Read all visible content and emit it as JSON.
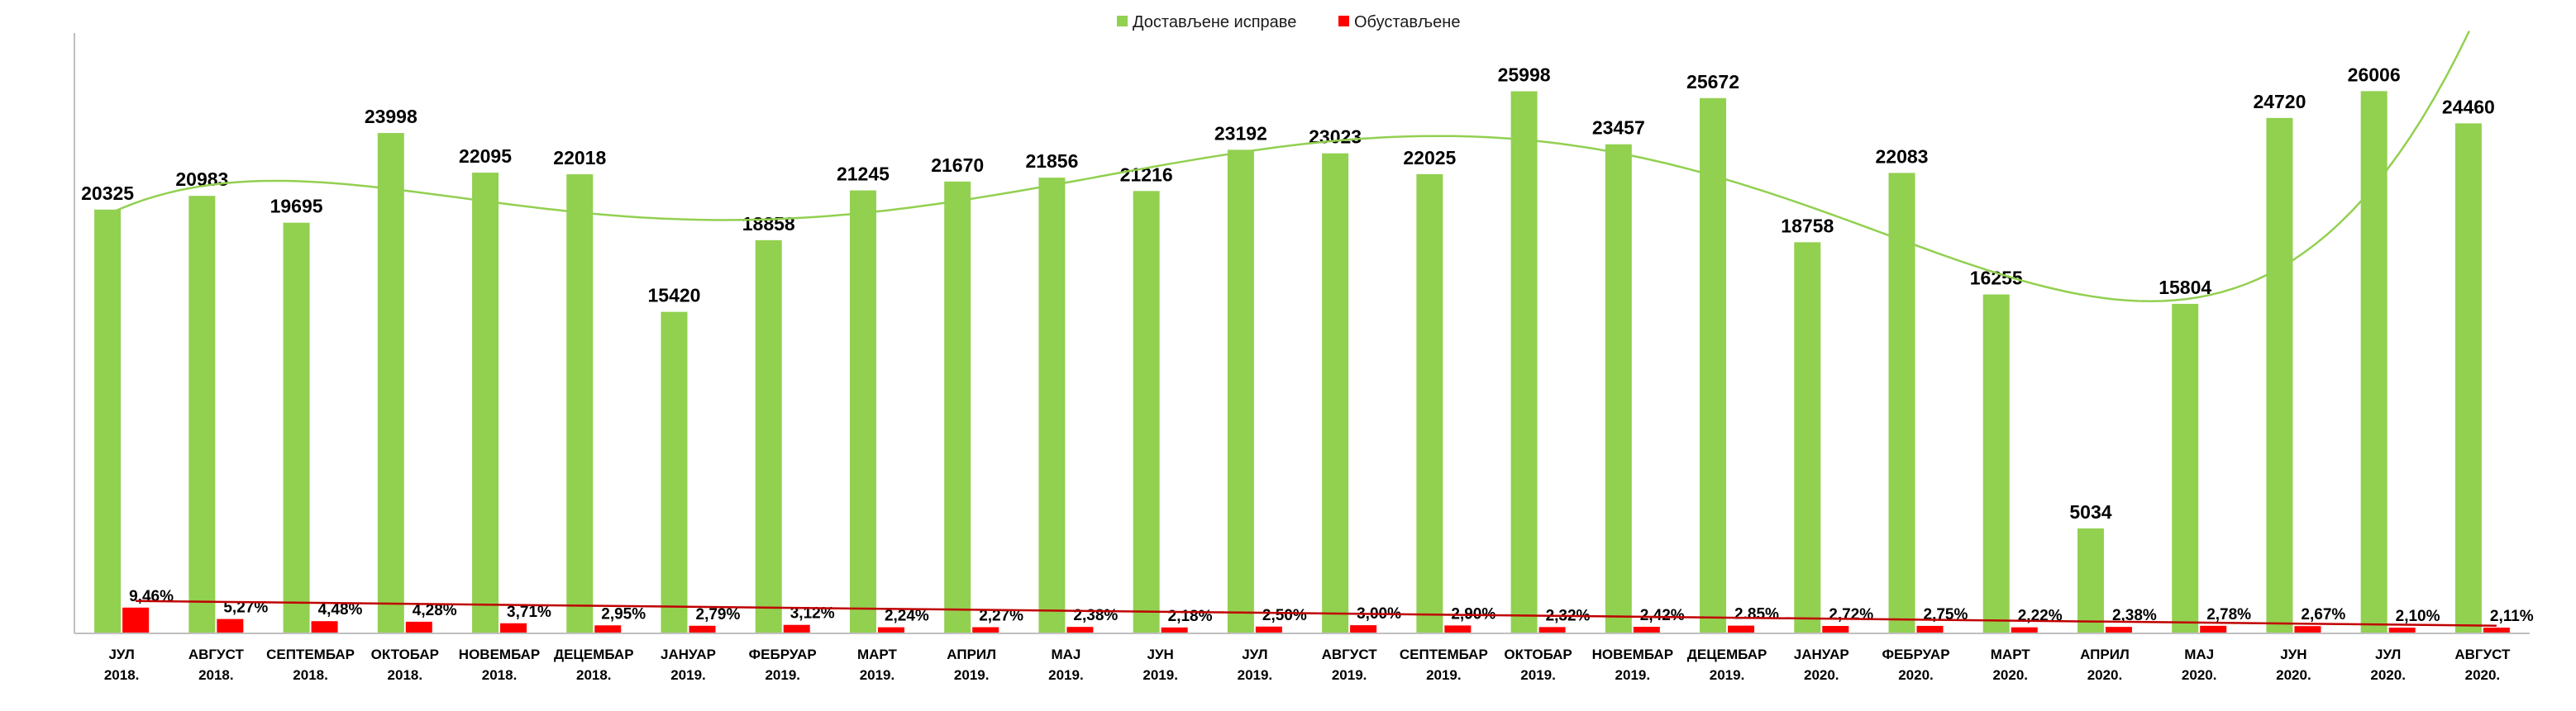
{
  "colors": {
    "submitted": "#92d050",
    "suspended": "#ff0000",
    "trend_submitted": "#92d050",
    "trend_suspended": "#c00000",
    "axis": "#bfbfbf"
  },
  "legend": {
    "submitted": "Достављене исправе",
    "suspended": "Обустављене"
  },
  "chart_data": {
    "type": "bar",
    "categories": [
      [
        "ЈУЛ",
        "2018."
      ],
      [
        "АВГУСТ",
        "2018."
      ],
      [
        "СЕПТЕМБАР",
        "2018."
      ],
      [
        "ОКТОБАР",
        "2018."
      ],
      [
        "НОВЕМБАР",
        "2018."
      ],
      [
        "ДЕЦЕМБАР",
        "2018."
      ],
      [
        "ЈАНУАР",
        "2019."
      ],
      [
        "ФЕБРУАР",
        "2019."
      ],
      [
        "МАРТ",
        "2019."
      ],
      [
        "АПРИЛ",
        "2019."
      ],
      [
        "МАЈ",
        "2019."
      ],
      [
        "ЈУН",
        "2019."
      ],
      [
        "ЈУЛ",
        "2019."
      ],
      [
        "АВГУСТ",
        "2019."
      ],
      [
        "СЕПТЕМБАР",
        "2019."
      ],
      [
        "ОКТОБАР",
        "2019."
      ],
      [
        "НОВЕМБАР",
        "2019."
      ],
      [
        "ДЕЦЕМБАР",
        "2019."
      ],
      [
        "ЈАНУАР",
        "2020."
      ],
      [
        "ФЕБРУАР",
        "2020."
      ],
      [
        "МАРТ",
        "2020."
      ],
      [
        "АПРИЛ",
        "2020."
      ],
      [
        "МАЈ",
        "2020."
      ],
      [
        "ЈУН",
        "2020."
      ],
      [
        "ЈУЛ",
        "2020."
      ],
      [
        "АВГУСТ",
        "2020."
      ]
    ],
    "series": [
      {
        "name": "Достављене исправе",
        "values": [
          20325,
          20983,
          19695,
          23998,
          22095,
          22018,
          15420,
          18858,
          21245,
          21670,
          21856,
          21216,
          23192,
          23023,
          22025,
          25998,
          23457,
          25672,
          18758,
          22083,
          16255,
          5034,
          15804,
          24720,
          26006,
          24460
        ],
        "labels": [
          "20325",
          "20983",
          "19695",
          "23998",
          "22095",
          "22018",
          "15420",
          "18858",
          "21245",
          "21670",
          "21856",
          "21216",
          "23192",
          "23023",
          "22025",
          "25998",
          "23457",
          "25672",
          "18758",
          "22083",
          "16255",
          "5034",
          "15804",
          "24720",
          "26006",
          "24460"
        ]
      },
      {
        "name": "Обустављене",
        "percent_values": [
          9.46,
          5.27,
          4.48,
          4.28,
          3.71,
          2.95,
          2.79,
          3.12,
          2.24,
          2.27,
          2.38,
          2.18,
          2.5,
          3.0,
          2.9,
          2.32,
          2.42,
          2.85,
          2.72,
          2.75,
          2.22,
          2.38,
          2.78,
          2.67,
          2.1,
          2.11
        ],
        "labels": [
          "9,46%",
          "5,27%",
          "4,48%",
          "4,28%",
          "3,71%",
          "2,95%",
          "2,79%",
          "3,12%",
          "2,24%",
          "2,27%",
          "2,38%",
          "2,18%",
          "2,50%",
          "3,00%",
          "2,90%",
          "2,32%",
          "2,42%",
          "2.85%",
          "2,72%",
          "2,75%",
          "2,22%",
          "2,38%",
          "2,78%",
          "2,67%",
          "2,10%",
          "2,11%"
        ]
      }
    ],
    "trendlines": [
      "polynomial",
      "linear"
    ],
    "ylim": [
      0,
      28000
    ],
    "grid": false,
    "legend_position": "top-center"
  }
}
